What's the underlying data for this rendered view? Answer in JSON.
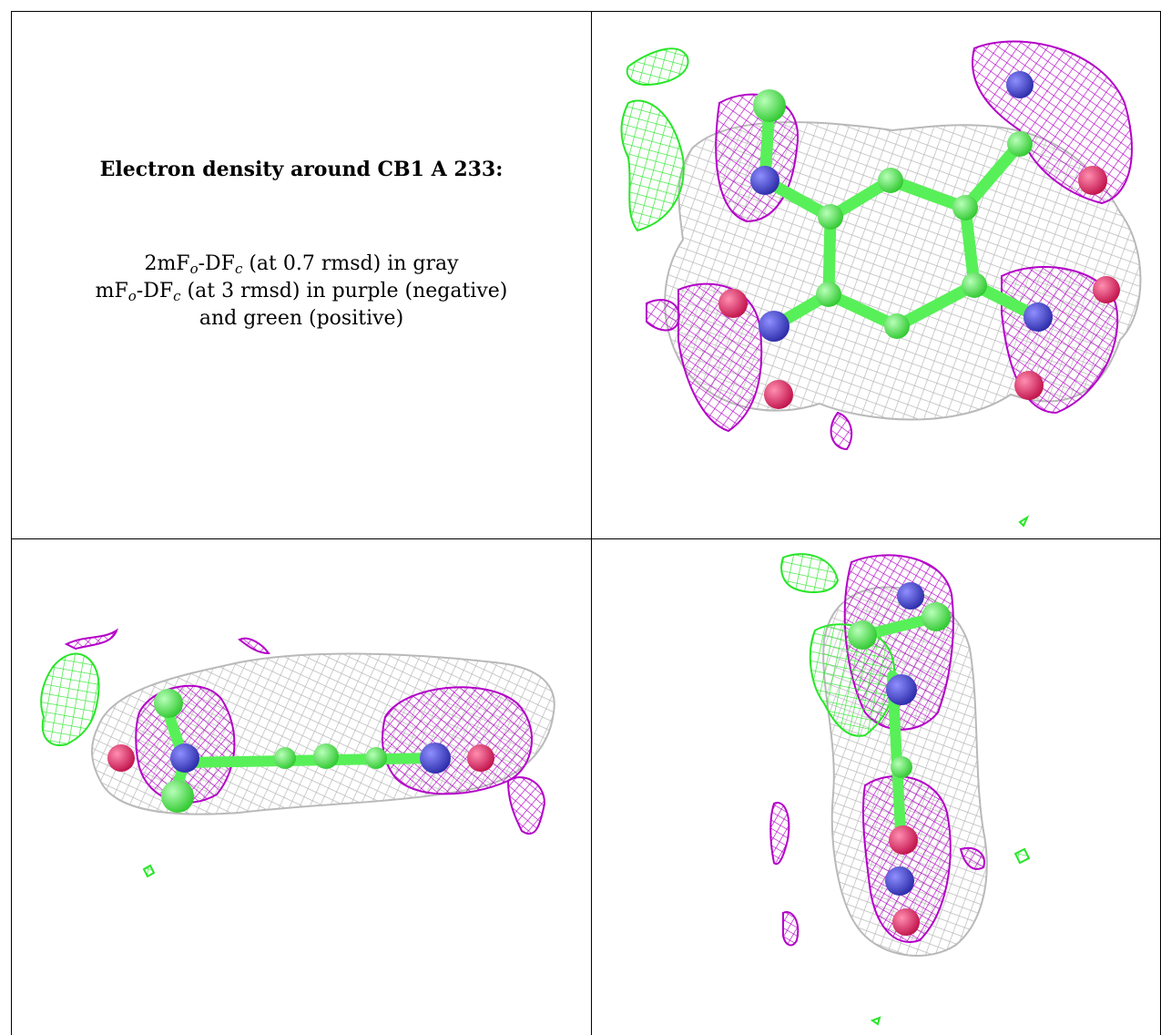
{
  "caption": {
    "title": "Electron density around CB1 A 233:",
    "line1_pre": "2mF",
    "line1_sub1": "o",
    "line1_mid": "-DF",
    "line1_sub2": "c",
    "line1_post": " (at 0.7 rmsd) in gray",
    "line2_pre": "mF",
    "line2_sub1": "o",
    "line2_mid": "-DF",
    "line2_sub2": "c",
    "line2_post": " (at 3 rmsd) in purple (negative)",
    "line3": "and green (positive)"
  },
  "colors": {
    "gray_mesh": "#b9b9b9",
    "purple_mesh": "#b400c8",
    "green_mesh": "#28e628",
    "carbon": "#58f058",
    "nitrogen": "#4a4ad8",
    "oxygen": "#e8306a"
  },
  "views": [
    "top-view",
    "side-view",
    "end-view"
  ]
}
